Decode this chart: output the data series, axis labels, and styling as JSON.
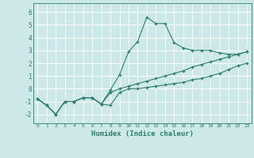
{
  "xlabel": "Humidex (Indice chaleur)",
  "ylabel": "",
  "bg_color": "#cce8e8",
  "grid_color": "#ffffff",
  "line_color": "#2e7d6e",
  "xlim": [
    -0.5,
    23.5
  ],
  "ylim": [
    -2.7,
    6.7
  ],
  "xticks": [
    0,
    1,
    2,
    3,
    4,
    5,
    6,
    7,
    8,
    9,
    10,
    11,
    12,
    13,
    14,
    15,
    16,
    17,
    18,
    19,
    20,
    21,
    22,
    23
  ],
  "yticks": [
    -2,
    -1,
    0,
    1,
    2,
    3,
    4,
    5,
    6
  ],
  "series": [
    {
      "x": [
        0,
        1,
        2,
        3,
        4,
        5,
        6,
        7,
        8,
        9,
        10,
        11,
        12,
        13,
        14,
        15,
        16,
        17,
        18,
        19,
        20,
        21,
        22,
        23
      ],
      "y": [
        -0.8,
        -1.3,
        -2.0,
        -1.0,
        -1.0,
        -0.7,
        -0.7,
        -1.2,
        -1.3,
        -0.3,
        0.0,
        0.0,
        0.1,
        0.2,
        0.3,
        0.4,
        0.5,
        0.7,
        0.8,
        1.0,
        1.2,
        1.5,
        1.8,
        2.0
      ]
    },
    {
      "x": [
        0,
        1,
        2,
        3,
        4,
        5,
        6,
        7,
        8,
        9,
        10,
        11,
        12,
        13,
        14,
        15,
        16,
        17,
        18,
        19,
        20,
        21,
        22,
        23
      ],
      "y": [
        -0.8,
        -1.3,
        -2.0,
        -1.0,
        -1.0,
        -0.7,
        -0.7,
        -1.2,
        -0.1,
        1.1,
        2.9,
        3.7,
        5.6,
        5.1,
        5.1,
        3.6,
        3.2,
        3.0,
        3.0,
        3.0,
        2.8,
        2.7,
        2.7,
        2.9
      ]
    },
    {
      "x": [
        0,
        1,
        2,
        3,
        4,
        5,
        6,
        7,
        8,
        9,
        10,
        11,
        12,
        13,
        14,
        15,
        16,
        17,
        18,
        19,
        20,
        21,
        22,
        23
      ],
      "y": [
        -0.8,
        -1.3,
        -2.0,
        -1.0,
        -1.0,
        -0.7,
        -0.7,
        -1.2,
        -0.3,
        0.0,
        0.2,
        0.4,
        0.6,
        0.8,
        1.0,
        1.2,
        1.4,
        1.7,
        1.9,
        2.1,
        2.3,
        2.5,
        2.7,
        2.9
      ]
    }
  ]
}
